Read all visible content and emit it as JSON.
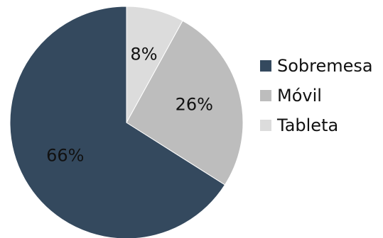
{
  "chart_data": {
    "type": "pie",
    "title": "",
    "slices": [
      {
        "label": "Sobremesa",
        "value": 66,
        "display": "66%",
        "color": "#34495e"
      },
      {
        "label": "Móvil",
        "value": 26,
        "display": "26%",
        "color": "#bdbdbd"
      },
      {
        "label": "Tableta",
        "value": 8,
        "display": "8%",
        "color": "#dcdcdc"
      }
    ],
    "legend_position": "right"
  }
}
